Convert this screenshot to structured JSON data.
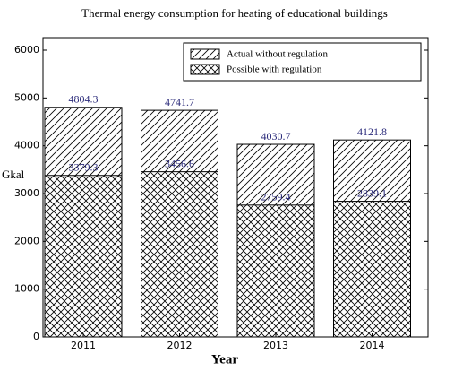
{
  "chart_data": {
    "type": "bar",
    "title": "Thermal energy consumption for heating of educational buildings",
    "x_label": "Year",
    "y_label": "Gkal",
    "categories": [
      "2011",
      "2012",
      "2013",
      "2014"
    ],
    "series": [
      {
        "name": "Actual without regulation",
        "color": "#000000",
        "hatch": "///",
        "values": [
          4804.3,
          4741.7,
          4030.7,
          4121.8
        ]
      },
      {
        "name": "Possible with regulation",
        "color": "#000000",
        "hatch": "xxx",
        "values": [
          3379.3,
          3456.6,
          2759.4,
          2839.1
        ]
      }
    ],
    "ylim": [
      0,
      6000
    ],
    "yticks": [
      0,
      1000,
      2000,
      3000,
      4000,
      5000,
      6000
    ],
    "legend": "upper right",
    "grid": false
  }
}
